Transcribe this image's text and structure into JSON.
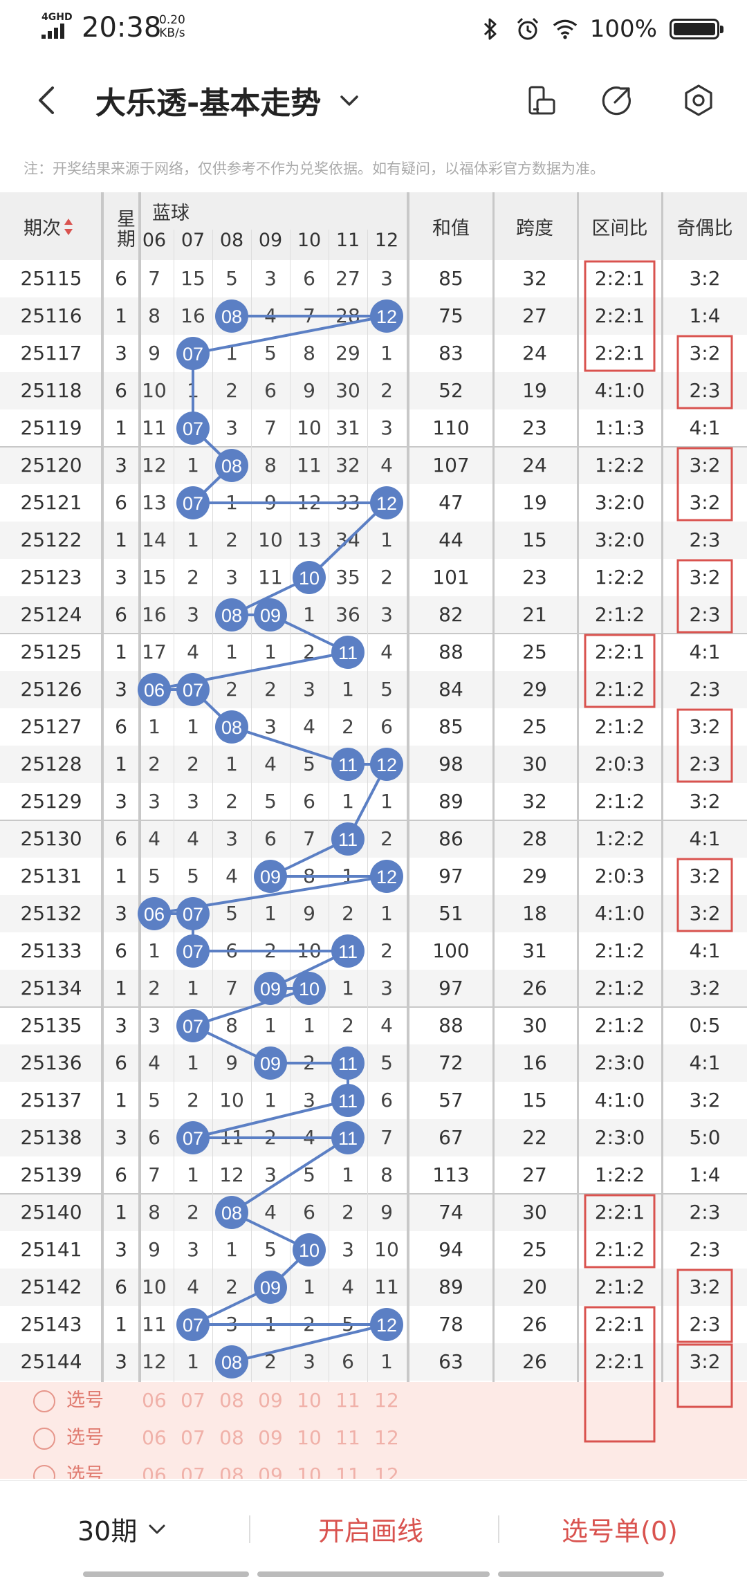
{
  "status_bar": {
    "network": "4GHD",
    "time": "20:38",
    "speed_value": "0.20",
    "speed_unit": "KB/s",
    "battery": "100%"
  },
  "header": {
    "title": "大乐透-基本走势",
    "icons": [
      "back-icon",
      "chevron-down-icon",
      "phone-rotate-icon",
      "share-icon",
      "settings-icon"
    ]
  },
  "notice": "注：开奖结果来源于网络，仅供参考不作为兑奖依据。如有疑问，以福体彩官方数据为准。",
  "table": {
    "headers": {
      "period": "期次",
      "weekday": "星期",
      "blue_group": "蓝球",
      "sum": "和值",
      "span": "跨度",
      "zone_ratio": "区间比",
      "odd_even": "奇偶比"
    },
    "ball_columns": [
      "06",
      "07",
      "08",
      "09",
      "10",
      "11",
      "12"
    ],
    "rows": [
      {
        "issue": "25115",
        "week": "6",
        "b": [
          "7",
          "15",
          "5",
          "3",
          "6",
          "27",
          "3"
        ],
        "hit": 0,
        "sum": "85",
        "span": "32",
        "zone": "2:2:1",
        "oe": "3:2"
      },
      {
        "issue": "25116",
        "week": "1",
        "b": [
          "8",
          "16",
          "08",
          "4",
          "7",
          "28",
          "12"
        ],
        "hit": 0,
        "sum": "75",
        "span": "27",
        "zone": "2:2:1",
        "oe": "1:4"
      },
      {
        "issue": "25117",
        "week": "3",
        "b": [
          "9",
          "07",
          "1",
          "5",
          "8",
          "29",
          "1"
        ],
        "hit": 0,
        "sum": "83",
        "span": "24",
        "zone": "2:2:1",
        "oe": "3:2"
      },
      {
        "issue": "25118",
        "week": "6",
        "b": [
          "10",
          "1",
          "2",
          "6",
          "9",
          "30",
          "2"
        ],
        "hit": 0,
        "sum": "52",
        "span": "19",
        "zone": "4:1:0",
        "oe": "2:3"
      },
      {
        "issue": "25119",
        "week": "1",
        "b": [
          "11",
          "07",
          "3",
          "7",
          "10",
          "31",
          "3"
        ],
        "hit": 0,
        "sum": "110",
        "span": "23",
        "zone": "1:1:3",
        "oe": "4:1"
      },
      {
        "issue": "25120",
        "week": "3",
        "b": [
          "12",
          "1",
          "08",
          "8",
          "11",
          "32",
          "4"
        ],
        "hit": 0,
        "sum": "107",
        "span": "24",
        "zone": "1:2:2",
        "oe": "3:2"
      },
      {
        "issue": "25121",
        "week": "6",
        "b": [
          "13",
          "07",
          "1",
          "9",
          "12",
          "33",
          "12"
        ],
        "hit": 0,
        "sum": "47",
        "span": "19",
        "zone": "3:2:0",
        "oe": "3:2"
      },
      {
        "issue": "25122",
        "week": "1",
        "b": [
          "14",
          "1",
          "2",
          "10",
          "13",
          "34",
          "1"
        ],
        "hit": 0,
        "sum": "44",
        "span": "15",
        "zone": "3:2:0",
        "oe": "2:3"
      },
      {
        "issue": "25123",
        "week": "3",
        "b": [
          "15",
          "2",
          "3",
          "11",
          "10",
          "35",
          "2"
        ],
        "hit": 0,
        "sum": "101",
        "span": "23",
        "zone": "1:2:2",
        "oe": "3:2"
      },
      {
        "issue": "25124",
        "week": "6",
        "b": [
          "16",
          "3",
          "08",
          "09",
          "1",
          "36",
          "3"
        ],
        "hit": 0,
        "sum": "82",
        "span": "21",
        "zone": "2:1:2",
        "oe": "2:3"
      },
      {
        "issue": "25125",
        "week": "1",
        "b": [
          "17",
          "4",
          "1",
          "1",
          "2",
          "11",
          "4"
        ],
        "hit": 0,
        "sum": "88",
        "span": "25",
        "zone": "2:2:1",
        "oe": "4:1"
      },
      {
        "issue": "25126",
        "week": "3",
        "b": [
          "06",
          "07",
          "2",
          "2",
          "3",
          "1",
          "5"
        ],
        "hit": 0,
        "sum": "84",
        "span": "29",
        "zone": "2:1:2",
        "oe": "2:3"
      },
      {
        "issue": "25127",
        "week": "6",
        "b": [
          "1",
          "1",
          "08",
          "3",
          "4",
          "2",
          "6"
        ],
        "hit": 0,
        "sum": "85",
        "span": "25",
        "zone": "2:1:2",
        "oe": "3:2"
      },
      {
        "issue": "25128",
        "week": "1",
        "b": [
          "2",
          "2",
          "1",
          "4",
          "5",
          "11",
          "12"
        ],
        "hit": 0,
        "sum": "98",
        "span": "30",
        "zone": "2:0:3",
        "oe": "2:3"
      },
      {
        "issue": "25129",
        "week": "3",
        "b": [
          "3",
          "3",
          "2",
          "5",
          "6",
          "1",
          "1"
        ],
        "hit": 0,
        "sum": "89",
        "span": "32",
        "zone": "2:1:2",
        "oe": "3:2"
      },
      {
        "issue": "25130",
        "week": "6",
        "b": [
          "4",
          "4",
          "3",
          "6",
          "7",
          "11",
          "2"
        ],
        "hit": 0,
        "sum": "86",
        "span": "28",
        "zone": "1:2:2",
        "oe": "4:1"
      },
      {
        "issue": "25131",
        "week": "1",
        "b": [
          "5",
          "5",
          "4",
          "09",
          "8",
          "1",
          "12"
        ],
        "hit": 0,
        "sum": "97",
        "span": "29",
        "zone": "2:0:3",
        "oe": "3:2"
      },
      {
        "issue": "25132",
        "week": "3",
        "b": [
          "06",
          "07",
          "5",
          "1",
          "9",
          "2",
          "1"
        ],
        "hit": 0,
        "sum": "51",
        "span": "18",
        "zone": "4:1:0",
        "oe": "3:2"
      },
      {
        "issue": "25133",
        "week": "6",
        "b": [
          "1",
          "07",
          "6",
          "2",
          "10",
          "11",
          "2"
        ],
        "hit": 0,
        "sum": "100",
        "span": "31",
        "zone": "2:1:2",
        "oe": "4:1"
      },
      {
        "issue": "25134",
        "week": "1",
        "b": [
          "2",
          "1",
          "7",
          "09",
          "10",
          "1",
          "3"
        ],
        "hit": 0,
        "sum": "97",
        "span": "26",
        "zone": "2:1:2",
        "oe": "3:2"
      },
      {
        "issue": "25135",
        "week": "3",
        "b": [
          "3",
          "07",
          "8",
          "1",
          "1",
          "2",
          "4"
        ],
        "hit": 0,
        "sum": "88",
        "span": "30",
        "zone": "2:1:2",
        "oe": "0:5"
      },
      {
        "issue": "25136",
        "week": "6",
        "b": [
          "4",
          "1",
          "9",
          "09",
          "2",
          "11",
          "5"
        ],
        "hit": 0,
        "sum": "72",
        "span": "16",
        "zone": "2:3:0",
        "oe": "4:1"
      },
      {
        "issue": "25137",
        "week": "1",
        "b": [
          "5",
          "2",
          "10",
          "1",
          "3",
          "11",
          "6"
        ],
        "hit": 0,
        "sum": "57",
        "span": "15",
        "zone": "4:1:0",
        "oe": "3:2"
      },
      {
        "issue": "25138",
        "week": "3",
        "b": [
          "6",
          "07",
          "11",
          "2",
          "4",
          "11",
          "7"
        ],
        "hit": 0,
        "sum": "67",
        "span": "22",
        "zone": "2:3:0",
        "oe": "5:0"
      },
      {
        "issue": "25139",
        "week": "6",
        "b": [
          "7",
          "1",
          "12",
          "3",
          "5",
          "1",
          "8"
        ],
        "hit": 0,
        "sum": "113",
        "span": "27",
        "zone": "1:2:2",
        "oe": "1:4"
      },
      {
        "issue": "25140",
        "week": "1",
        "b": [
          "8",
          "2",
          "08",
          "4",
          "6",
          "2",
          "9"
        ],
        "hit": 0,
        "sum": "74",
        "span": "30",
        "zone": "2:2:1",
        "oe": "2:3"
      },
      {
        "issue": "25141",
        "week": "3",
        "b": [
          "9",
          "3",
          "1",
          "5",
          "10",
          "3",
          "10"
        ],
        "hit": 0,
        "sum": "94",
        "span": "25",
        "zone": "2:1:2",
        "oe": "2:3"
      },
      {
        "issue": "25142",
        "week": "6",
        "b": [
          "10",
          "4",
          "2",
          "09",
          "1",
          "4",
          "11"
        ],
        "hit": 0,
        "sum": "89",
        "span": "20",
        "zone": "2:1:2",
        "oe": "3:2"
      },
      {
        "issue": "25143",
        "week": "1",
        "b": [
          "11",
          "07",
          "3",
          "1",
          "2",
          "5",
          "12"
        ],
        "hit": 0,
        "sum": "78",
        "span": "26",
        "zone": "2:2:1",
        "oe": "2:3"
      },
      {
        "issue": "25144",
        "week": "3",
        "b": [
          "12",
          "1",
          "08",
          "2",
          "3",
          "6",
          "1"
        ],
        "hit": 0,
        "sum": "63",
        "span": "26",
        "zone": "2:2:1",
        "oe": "3:2"
      }
    ],
    "hits": [
      [],
      [
        2,
        6
      ],
      [
        1
      ],
      [],
      [
        1
      ],
      [
        2
      ],
      [
        1,
        6
      ],
      [],
      [
        4
      ],
      [
        2,
        3
      ],
      [
        5
      ],
      [
        0,
        1
      ],
      [
        2
      ],
      [
        5,
        6
      ],
      [],
      [
        5
      ],
      [
        3,
        6
      ],
      [
        0,
        1
      ],
      [
        1,
        5
      ],
      [
        3,
        4
      ],
      [
        1
      ],
      [
        3,
        5
      ],
      [
        5
      ],
      [
        1,
        5
      ],
      [],
      [
        2
      ],
      [
        4
      ],
      [
        3
      ],
      [
        1,
        6
      ],
      [
        2
      ]
    ]
  },
  "pick_rows": [
    {
      "label": "选号"
    },
    {
      "label": "选号"
    },
    {
      "label": "选号"
    }
  ],
  "bottom_bar": {
    "period": "30期",
    "draw_line": "开启画线",
    "pick_list": "选号单(0)"
  },
  "colors": {
    "ball": "#5b7fc4",
    "line": "#5b7fc4",
    "highlight_box": "#d9534f",
    "accent_text": "#d9534f"
  }
}
